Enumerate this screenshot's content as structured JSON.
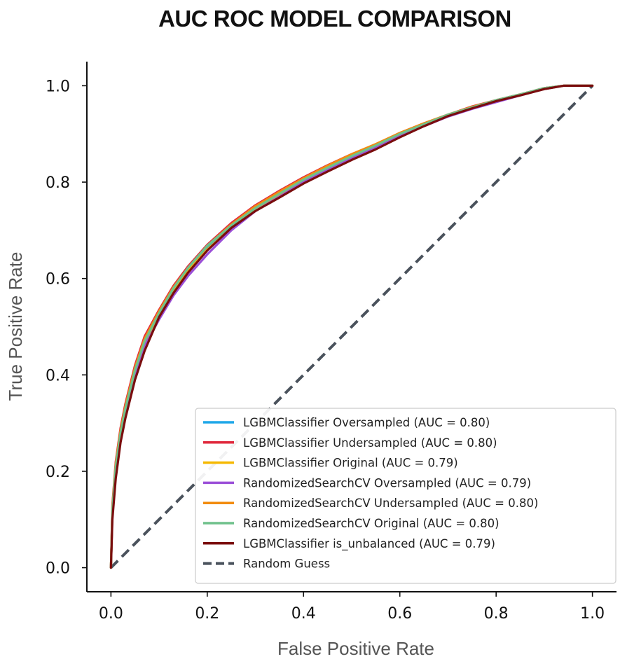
{
  "chart_data": {
    "type": "line",
    "title": "AUC ROC MODEL COMPARISON",
    "xlabel": "False Positive Rate",
    "ylabel": "True Positive Rate",
    "xlim": [
      -0.05,
      1.05
    ],
    "ylim": [
      -0.05,
      1.05
    ],
    "xticks": [
      "0.0",
      "0.2",
      "0.4",
      "0.6",
      "0.8",
      "1.0"
    ],
    "yticks": [
      "0.0",
      "0.2",
      "0.4",
      "0.6",
      "0.8",
      "1.0"
    ],
    "grid": false,
    "legend_position": "lower-right",
    "series": [
      {
        "name": "LGBMClassifier Oversampled (AUC = 0.80)",
        "color": "#1ea7e8",
        "x": [
          0,
          0.003,
          0.01,
          0.02,
          0.03,
          0.05,
          0.07,
          0.1,
          0.13,
          0.16,
          0.2,
          0.25,
          0.3,
          0.35,
          0.4,
          0.45,
          0.5,
          0.55,
          0.6,
          0.65,
          0.7,
          0.75,
          0.8,
          0.85,
          0.9,
          0.94,
          0.97,
          1.0
        ],
        "y": [
          0,
          0.12,
          0.21,
          0.28,
          0.33,
          0.41,
          0.47,
          0.53,
          0.58,
          0.62,
          0.665,
          0.71,
          0.745,
          0.775,
          0.805,
          0.83,
          0.855,
          0.875,
          0.9,
          0.92,
          0.94,
          0.955,
          0.97,
          0.982,
          0.995,
          1.0,
          1.0,
          1.0
        ]
      },
      {
        "name": "LGBMClassifier Undersampled (AUC = 0.80)",
        "color": "#e0283c",
        "x": [
          0,
          0.003,
          0.01,
          0.02,
          0.03,
          0.05,
          0.07,
          0.1,
          0.13,
          0.16,
          0.2,
          0.25,
          0.3,
          0.35,
          0.4,
          0.45,
          0.5,
          0.55,
          0.6,
          0.65,
          0.7,
          0.75,
          0.8,
          0.85,
          0.9,
          0.94,
          0.97,
          1.0
        ],
        "y": [
          0,
          0.13,
          0.22,
          0.29,
          0.34,
          0.42,
          0.48,
          0.535,
          0.585,
          0.625,
          0.67,
          0.715,
          0.752,
          0.782,
          0.81,
          0.835,
          0.858,
          0.878,
          0.902,
          0.922,
          0.94,
          0.957,
          0.97,
          0.982,
          0.995,
          1.0,
          1.0,
          1.0
        ]
      },
      {
        "name": "LGBMClassifier Original (AUC = 0.79)",
        "color": "#f5b800",
        "x": [
          0,
          0.003,
          0.01,
          0.02,
          0.03,
          0.05,
          0.07,
          0.1,
          0.13,
          0.16,
          0.2,
          0.25,
          0.3,
          0.35,
          0.4,
          0.45,
          0.5,
          0.55,
          0.6,
          0.65,
          0.7,
          0.75,
          0.8,
          0.85,
          0.9,
          0.94,
          0.97,
          1.0
        ],
        "y": [
          0,
          0.115,
          0.2,
          0.275,
          0.325,
          0.405,
          0.465,
          0.525,
          0.575,
          0.615,
          0.66,
          0.705,
          0.742,
          0.772,
          0.802,
          0.828,
          0.852,
          0.873,
          0.898,
          0.918,
          0.938,
          0.954,
          0.968,
          0.98,
          0.993,
          1.0,
          1.0,
          1.0
        ]
      },
      {
        "name": "RandomizedSearchCV Oversampled (AUC = 0.79)",
        "color": "#9b4fd8",
        "x": [
          0,
          0.003,
          0.01,
          0.02,
          0.03,
          0.05,
          0.07,
          0.1,
          0.13,
          0.16,
          0.2,
          0.25,
          0.3,
          0.35,
          0.4,
          0.45,
          0.5,
          0.55,
          0.6,
          0.65,
          0.7,
          0.75,
          0.8,
          0.85,
          0.9,
          0.94,
          0.97,
          1.0
        ],
        "y": [
          0,
          0.11,
          0.195,
          0.27,
          0.32,
          0.4,
          0.46,
          0.515,
          0.565,
          0.605,
          0.65,
          0.7,
          0.74,
          0.77,
          0.8,
          0.825,
          0.85,
          0.872,
          0.896,
          0.916,
          0.936,
          0.952,
          0.966,
          0.98,
          0.993,
          1.0,
          1.0,
          1.0
        ]
      },
      {
        "name": "RandomizedSearchCV Undersampled (AUC = 0.80)",
        "color": "#f28c0f",
        "x": [
          0,
          0.003,
          0.01,
          0.02,
          0.03,
          0.05,
          0.07,
          0.1,
          0.13,
          0.16,
          0.2,
          0.25,
          0.3,
          0.35,
          0.4,
          0.45,
          0.5,
          0.55,
          0.6,
          0.65,
          0.7,
          0.75,
          0.8,
          0.85,
          0.9,
          0.94,
          0.97,
          1.0
        ],
        "y": [
          0,
          0.125,
          0.215,
          0.285,
          0.335,
          0.415,
          0.475,
          0.532,
          0.582,
          0.622,
          0.668,
          0.712,
          0.75,
          0.78,
          0.808,
          0.834,
          0.858,
          0.879,
          0.902,
          0.922,
          0.94,
          0.956,
          0.97,
          0.982,
          0.995,
          1.0,
          1.0,
          1.0
        ]
      },
      {
        "name": "RandomizedSearchCV Original (AUC = 0.80)",
        "color": "#6fc18b",
        "x": [
          0,
          0.003,
          0.01,
          0.02,
          0.03,
          0.05,
          0.07,
          0.1,
          0.13,
          0.16,
          0.2,
          0.25,
          0.3,
          0.35,
          0.4,
          0.45,
          0.5,
          0.55,
          0.6,
          0.65,
          0.7,
          0.75,
          0.8,
          0.85,
          0.9,
          0.94,
          0.97,
          1.0
        ],
        "y": [
          0,
          0.12,
          0.21,
          0.28,
          0.33,
          0.41,
          0.47,
          0.528,
          0.58,
          0.622,
          0.668,
          0.71,
          0.746,
          0.776,
          0.805,
          0.83,
          0.854,
          0.876,
          0.9,
          0.92,
          0.94,
          0.955,
          0.97,
          0.982,
          0.995,
          1.0,
          1.0,
          1.0
        ]
      },
      {
        "name": "LGBMClassifier is_unbalanced (AUC = 0.79)",
        "color": "#7a0d0d",
        "x": [
          0,
          0.003,
          0.01,
          0.02,
          0.03,
          0.05,
          0.07,
          0.1,
          0.13,
          0.16,
          0.2,
          0.25,
          0.3,
          0.35,
          0.4,
          0.45,
          0.5,
          0.55,
          0.6,
          0.65,
          0.7,
          0.75,
          0.8,
          0.85,
          0.9,
          0.94,
          0.97,
          1.0
        ],
        "y": [
          0,
          0.1,
          0.185,
          0.26,
          0.31,
          0.39,
          0.45,
          0.52,
          0.57,
          0.612,
          0.658,
          0.705,
          0.74,
          0.768,
          0.797,
          0.822,
          0.846,
          0.868,
          0.893,
          0.916,
          0.937,
          0.953,
          0.968,
          0.98,
          0.993,
          1.0,
          1.0,
          1.0
        ]
      },
      {
        "name": "Random Guess",
        "color": "#4a525c",
        "dashed": true,
        "x": [
          0,
          1
        ],
        "y": [
          0,
          1
        ]
      }
    ]
  }
}
